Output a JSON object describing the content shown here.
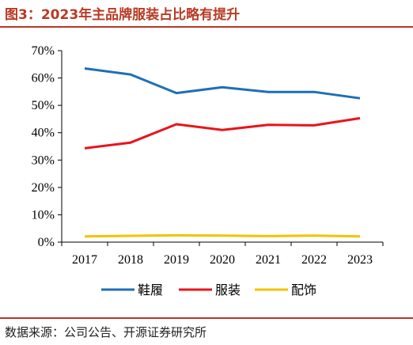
{
  "header": {
    "title": "图3：2023年主品牌服装占比略有提升",
    "source": "数据来源：公司公告、开源证券研究所"
  },
  "chart_data": {
    "type": "line",
    "title": "图3：2023年主品牌服装占比略有提升",
    "x": [
      "2017",
      "2018",
      "2019",
      "2020",
      "2021",
      "2022",
      "2023"
    ],
    "y_ticks": [
      "0%",
      "10%",
      "20%",
      "30%",
      "40%",
      "50%",
      "60%",
      "70%"
    ],
    "ylim": [
      0,
      70
    ],
    "grid": false,
    "legend": "bottom",
    "series": [
      {
        "name": "鞋履",
        "color": "#1f6fb4",
        "values": [
          63.5,
          61.3,
          54.5,
          56.6,
          54.9,
          54.9,
          52.6
        ]
      },
      {
        "name": "服装",
        "color": "#e8141b",
        "values": [
          34.3,
          36.4,
          43.1,
          41.0,
          42.9,
          42.7,
          45.3
        ]
      },
      {
        "name": "配饰",
        "color": "#f5c200",
        "values": [
          2.1,
          2.3,
          2.5,
          2.4,
          2.2,
          2.4,
          2.1
        ]
      }
    ]
  }
}
